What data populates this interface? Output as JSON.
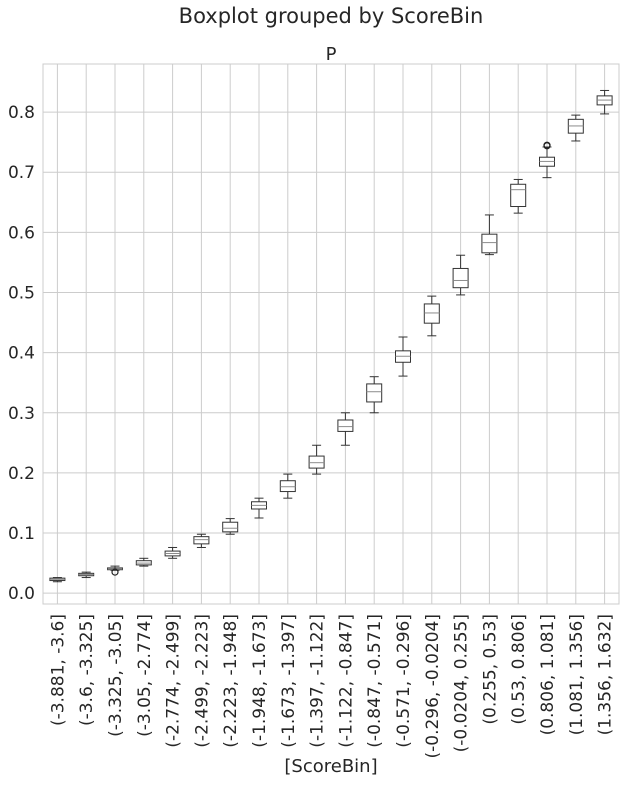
{
  "chart_data": {
    "type": "boxplot",
    "suptitle": "Boxplot grouped by ScoreBin",
    "title": "P",
    "xlabel": "[ScoreBin]",
    "ylabel": "",
    "ylim": [
      -0.018,
      0.88
    ],
    "yticks": [
      0.0,
      0.1,
      0.2,
      0.3,
      0.4,
      0.5,
      0.6,
      0.7,
      0.8
    ],
    "grid": true,
    "categories": [
      "(-3.881, -3.6]",
      "(-3.6, -3.325]",
      "(-3.325, -3.05]",
      "(-3.05, -2.774]",
      "(-2.774, -2.499]",
      "(-2.499, -2.223]",
      "(-2.223, -1.948]",
      "(-1.948, -1.673]",
      "(-1.673, -1.397]",
      "(-1.397, -1.122]",
      "(-1.122, -0.847]",
      "(-0.847, -0.571]",
      "(-0.571, -0.296]",
      "(-0.296, -0.0204]",
      "(-0.0204, 0.255]",
      "(0.255, 0.53]",
      "(0.53, 0.806]",
      "(0.806, 1.081]",
      "(1.081, 1.356]",
      "(1.356, 1.632]"
    ],
    "boxes": [
      {
        "whisker_low": 0.019,
        "q1": 0.021,
        "median": 0.023,
        "q3": 0.025,
        "whisker_high": 0.026,
        "outliers": []
      },
      {
        "whisker_low": 0.026,
        "q1": 0.029,
        "median": 0.031,
        "q3": 0.033,
        "whisker_high": 0.035,
        "outliers": []
      },
      {
        "whisker_low": 0.038,
        "q1": 0.039,
        "median": 0.04,
        "q3": 0.042,
        "whisker_high": 0.045,
        "outliers": [
          0.035
        ]
      },
      {
        "whisker_low": 0.045,
        "q1": 0.047,
        "median": 0.05,
        "q3": 0.054,
        "whisker_high": 0.058,
        "outliers": []
      },
      {
        "whisker_low": 0.058,
        "q1": 0.062,
        "median": 0.066,
        "q3": 0.07,
        "whisker_high": 0.076,
        "outliers": []
      },
      {
        "whisker_low": 0.076,
        "q1": 0.082,
        "median": 0.089,
        "q3": 0.094,
        "whisker_high": 0.098,
        "outliers": []
      },
      {
        "whisker_low": 0.098,
        "q1": 0.102,
        "median": 0.108,
        "q3": 0.118,
        "whisker_high": 0.124,
        "outliers": []
      },
      {
        "whisker_low": 0.125,
        "q1": 0.14,
        "median": 0.146,
        "q3": 0.152,
        "whisker_high": 0.158,
        "outliers": []
      },
      {
        "whisker_low": 0.158,
        "q1": 0.169,
        "median": 0.177,
        "q3": 0.187,
        "whisker_high": 0.198,
        "outliers": []
      },
      {
        "whisker_low": 0.198,
        "q1": 0.208,
        "median": 0.217,
        "q3": 0.228,
        "whisker_high": 0.246,
        "outliers": []
      },
      {
        "whisker_low": 0.246,
        "q1": 0.269,
        "median": 0.277,
        "q3": 0.288,
        "whisker_high": 0.3,
        "outliers": []
      },
      {
        "whisker_low": 0.3,
        "q1": 0.318,
        "median": 0.335,
        "q3": 0.348,
        "whisker_high": 0.36,
        "outliers": []
      },
      {
        "whisker_low": 0.361,
        "q1": 0.384,
        "median": 0.394,
        "q3": 0.403,
        "whisker_high": 0.426,
        "outliers": []
      },
      {
        "whisker_low": 0.428,
        "q1": 0.449,
        "median": 0.466,
        "q3": 0.481,
        "whisker_high": 0.494,
        "outliers": []
      },
      {
        "whisker_low": 0.496,
        "q1": 0.508,
        "median": 0.52,
        "q3": 0.54,
        "whisker_high": 0.562,
        "outliers": []
      },
      {
        "whisker_low": 0.563,
        "q1": 0.566,
        "median": 0.583,
        "q3": 0.597,
        "whisker_high": 0.629,
        "outliers": []
      },
      {
        "whisker_low": 0.632,
        "q1": 0.643,
        "median": 0.671,
        "q3": 0.68,
        "whisker_high": 0.688,
        "outliers": []
      },
      {
        "whisker_low": 0.691,
        "q1": 0.71,
        "median": 0.718,
        "q3": 0.725,
        "whisker_high": 0.742,
        "outliers": [
          0.745,
          0.744
        ]
      },
      {
        "whisker_low": 0.752,
        "q1": 0.765,
        "median": 0.777,
        "q3": 0.788,
        "whisker_high": 0.795,
        "outliers": []
      },
      {
        "whisker_low": 0.797,
        "q1": 0.812,
        "median": 0.82,
        "q3": 0.827,
        "whisker_high": 0.836,
        "outliers": []
      }
    ]
  }
}
